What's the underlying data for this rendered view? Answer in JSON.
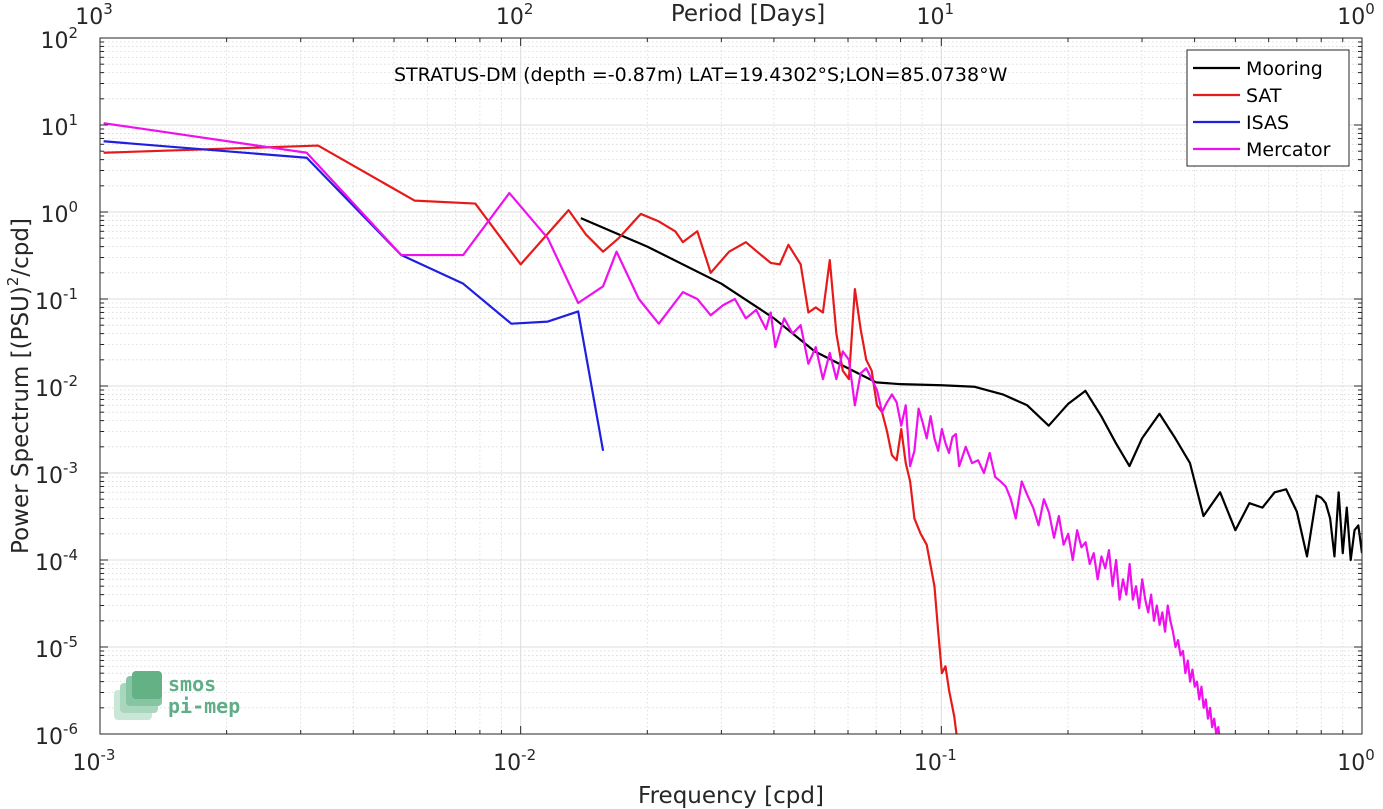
{
  "chart_data": {
    "type": "line",
    "title": "STRATUS-DM (depth =-0.87m) LAT=19.4302°S;LON=85.0738°W",
    "xlabel": "Frequency [cpd]",
    "ylabel_pre": "Power Spectrum [(PSU)",
    "ylabel_exp": "2",
    "ylabel_post": "/cpd]",
    "top_xlabel": "Period [Days]",
    "xscale": "log",
    "yscale": "log",
    "xlim": [
      0.001,
      1
    ],
    "ylim": [
      1e-06,
      100
    ],
    "grid": true,
    "legend_position": "top-right",
    "x_ticks": [
      {
        "base": "10",
        "exp": "-3"
      },
      {
        "base": "10",
        "exp": "-2"
      },
      {
        "base": "10",
        "exp": "-1"
      },
      {
        "base": "10",
        "exp": "0"
      }
    ],
    "y_ticks": [
      {
        "base": "10",
        "exp": "2"
      },
      {
        "base": "10",
        "exp": "1"
      },
      {
        "base": "10",
        "exp": "0"
      },
      {
        "base": "10",
        "exp": "-1"
      },
      {
        "base": "10",
        "exp": "-2"
      },
      {
        "base": "10",
        "exp": "-3"
      },
      {
        "base": "10",
        "exp": "-4"
      },
      {
        "base": "10",
        "exp": "-5"
      },
      {
        "base": "10",
        "exp": "-6"
      }
    ],
    "top_ticks": [
      {
        "base": "10",
        "exp": "3"
      },
      {
        "base": "10",
        "exp": "2"
      },
      {
        "base": "10",
        "exp": "1"
      },
      {
        "base": "10",
        "exp": "0"
      }
    ],
    "series": [
      {
        "name": "Mooring",
        "color": "#000000",
        "points": [
          [
            0.0139,
            0.85
          ],
          [
            0.02,
            0.4
          ],
          [
            0.03,
            0.15
          ],
          [
            0.04,
            0.06
          ],
          [
            0.05,
            0.025
          ],
          [
            0.06,
            0.016
          ],
          [
            0.07,
            0.011
          ],
          [
            0.08,
            0.0105
          ],
          [
            0.1,
            0.0102
          ],
          [
            0.12,
            0.0098
          ],
          [
            0.14,
            0.008
          ],
          [
            0.16,
            0.006
          ],
          [
            0.18,
            0.0035
          ],
          [
            0.2,
            0.0062
          ],
          [
            0.22,
            0.0088
          ],
          [
            0.24,
            0.0045
          ],
          [
            0.26,
            0.0022
          ],
          [
            0.28,
            0.0012
          ],
          [
            0.3,
            0.0025
          ],
          [
            0.33,
            0.0048
          ],
          [
            0.36,
            0.0025
          ],
          [
            0.39,
            0.0013
          ],
          [
            0.42,
            0.00032
          ],
          [
            0.46,
            0.0006
          ],
          [
            0.5,
            0.00022
          ],
          [
            0.54,
            0.00045
          ],
          [
            0.58,
            0.0004
          ],
          [
            0.62,
            0.0006
          ],
          [
            0.66,
            0.00065
          ],
          [
            0.7,
            0.00036
          ],
          [
            0.74,
            0.00011
          ],
          [
            0.78,
            0.00055
          ],
          [
            0.8,
            0.00052
          ],
          [
            0.82,
            0.00045
          ],
          [
            0.84,
            0.0003
          ],
          [
            0.86,
            0.00011
          ],
          [
            0.88,
            0.0006
          ],
          [
            0.9,
            0.00012
          ],
          [
            0.92,
            0.0004
          ],
          [
            0.94,
            0.0001
          ],
          [
            0.96,
            0.00022
          ],
          [
            0.98,
            0.00025
          ],
          [
            1.0,
            0.00012
          ]
        ]
      },
      {
        "name": "SAT",
        "color": "#e61a1a",
        "points": [
          [
            0.00102,
            4.8
          ],
          [
            0.0033,
            5.8
          ],
          [
            0.0056,
            1.35
          ],
          [
            0.0078,
            1.25
          ],
          [
            0.01,
            0.25
          ],
          [
            0.013,
            1.05
          ],
          [
            0.0143,
            0.55
          ],
          [
            0.0157,
            0.35
          ],
          [
            0.0171,
            0.5
          ],
          [
            0.0193,
            0.95
          ],
          [
            0.0213,
            0.78
          ],
          [
            0.0233,
            0.6
          ],
          [
            0.0243,
            0.45
          ],
          [
            0.0263,
            0.6
          ],
          [
            0.0283,
            0.2
          ],
          [
            0.0313,
            0.35
          ],
          [
            0.0343,
            0.45
          ],
          [
            0.0373,
            0.32
          ],
          [
            0.0393,
            0.26
          ],
          [
            0.0413,
            0.25
          ],
          [
            0.0433,
            0.42
          ],
          [
            0.0463,
            0.25
          ],
          [
            0.0483,
            0.07
          ],
          [
            0.0503,
            0.08
          ],
          [
            0.0523,
            0.07
          ],
          [
            0.0543,
            0.28
          ],
          [
            0.0563,
            0.04
          ],
          [
            0.0583,
            0.015
          ],
          [
            0.0603,
            0.012
          ],
          [
            0.0623,
            0.13
          ],
          [
            0.0643,
            0.045
          ],
          [
            0.0663,
            0.02
          ],
          [
            0.0683,
            0.015
          ],
          [
            0.0703,
            0.006
          ],
          [
            0.0723,
            0.005
          ],
          [
            0.0743,
            0.003
          ],
          [
            0.0763,
            0.0016
          ],
          [
            0.0783,
            0.0014
          ],
          [
            0.0803,
            0.0032
          ],
          [
            0.0823,
            0.0013
          ],
          [
            0.0843,
            0.0008
          ],
          [
            0.0863,
            0.0003
          ],
          [
            0.0893,
            0.0002
          ],
          [
            0.0923,
            0.00015
          ],
          [
            0.0963,
            5e-05
          ],
          [
            0.0983,
            1.5e-05
          ],
          [
            0.1003,
            5e-06
          ],
          [
            0.1023,
            6e-06
          ],
          [
            0.1043,
            3.2e-06
          ],
          [
            0.1073,
            1.6e-06
          ],
          [
            0.1093,
            8e-07
          ]
        ]
      },
      {
        "name": "ISAS",
        "color": "#1f1fe0",
        "points": [
          [
            0.00102,
            6.5
          ],
          [
            0.0031,
            4.2
          ],
          [
            0.0052,
            0.32
          ],
          [
            0.0073,
            0.15
          ],
          [
            0.0095,
            0.052
          ],
          [
            0.0116,
            0.055
          ],
          [
            0.0137,
            0.072
          ],
          [
            0.0157,
            0.0018
          ]
        ]
      },
      {
        "name": "Mercator",
        "color": "#ee11ee",
        "points": [
          [
            0.00102,
            10.5
          ],
          [
            0.0031,
            4.8
          ],
          [
            0.0052,
            0.32
          ],
          [
            0.0073,
            0.32
          ],
          [
            0.0094,
            1.65
          ],
          [
            0.0116,
            0.5
          ],
          [
            0.0137,
            0.09
          ],
          [
            0.0157,
            0.14
          ],
          [
            0.0169,
            0.35
          ],
          [
            0.0191,
            0.1
          ],
          [
            0.0213,
            0.052
          ],
          [
            0.0243,
            0.12
          ],
          [
            0.0263,
            0.1
          ],
          [
            0.0283,
            0.065
          ],
          [
            0.0303,
            0.085
          ],
          [
            0.0323,
            0.1
          ],
          [
            0.0343,
            0.06
          ],
          [
            0.0363,
            0.075
          ],
          [
            0.0383,
            0.045
          ],
          [
            0.0393,
            0.07
          ],
          [
            0.0403,
            0.028
          ],
          [
            0.0423,
            0.06
          ],
          [
            0.0443,
            0.04
          ],
          [
            0.0463,
            0.05
          ],
          [
            0.0483,
            0.018
          ],
          [
            0.0503,
            0.028
          ],
          [
            0.0523,
            0.012
          ],
          [
            0.0543,
            0.024
          ],
          [
            0.0563,
            0.012
          ],
          [
            0.0583,
            0.025
          ],
          [
            0.0603,
            0.02
          ],
          [
            0.0623,
            0.006
          ],
          [
            0.0643,
            0.014
          ],
          [
            0.0663,
            0.016
          ],
          [
            0.0683,
            0.012
          ],
          [
            0.0703,
            0.009
          ],
          [
            0.0723,
            0.005
          ],
          [
            0.0743,
            0.0065
          ],
          [
            0.0763,
            0.008
          ],
          [
            0.0783,
            0.0065
          ],
          [
            0.0803,
            0.0035
          ],
          [
            0.0823,
            0.006
          ],
          [
            0.0843,
            0.0012
          ],
          [
            0.0863,
            0.0018
          ],
          [
            0.0883,
            0.0055
          ],
          [
            0.0903,
            0.0038
          ],
          [
            0.0923,
            0.0025
          ],
          [
            0.0943,
            0.0045
          ],
          [
            0.0963,
            0.0025
          ],
          [
            0.0983,
            0.0018
          ],
          [
            0.1003,
            0.0032
          ],
          [
            0.1023,
            0.0022
          ],
          [
            0.1043,
            0.0017
          ],
          [
            0.1063,
            0.0026
          ],
          [
            0.1083,
            0.0028
          ],
          [
            0.1103,
            0.0012
          ],
          [
            0.1143,
            0.002
          ],
          [
            0.1183,
            0.0013
          ],
          [
            0.1223,
            0.0014
          ],
          [
            0.1263,
            0.001
          ],
          [
            0.1303,
            0.0017
          ],
          [
            0.1343,
            0.0009
          ],
          [
            0.1383,
            0.0008
          ],
          [
            0.1423,
            0.0007
          ],
          [
            0.1463,
            0.0005
          ],
          [
            0.1503,
            0.0003
          ],
          [
            0.1553,
            0.0008
          ],
          [
            0.1603,
            0.00055
          ],
          [
            0.1653,
            0.0004
          ],
          [
            0.1703,
            0.00025
          ],
          [
            0.1753,
            0.0005
          ],
          [
            0.1803,
            0.00035
          ],
          [
            0.1853,
            0.00018
          ],
          [
            0.1903,
            0.00032
          ],
          [
            0.1953,
            0.00015
          ],
          [
            0.2003,
            0.0002
          ],
          [
            0.2053,
            0.0001
          ],
          [
            0.2103,
            0.00022
          ],
          [
            0.2153,
            0.00014
          ],
          [
            0.2203,
            0.00016
          ],
          [
            0.2253,
            9e-05
          ],
          [
            0.2303,
            0.00012
          ],
          [
            0.2353,
            6e-05
          ],
          [
            0.2403,
            0.00011
          ],
          [
            0.2453,
            8e-05
          ],
          [
            0.2503,
            0.00013
          ],
          [
            0.2553,
            5e-05
          ],
          [
            0.2603,
            0.0001
          ],
          [
            0.2653,
            3.5e-05
          ],
          [
            0.2703,
            6e-05
          ],
          [
            0.2753,
            4e-05
          ],
          [
            0.2803,
            9e-05
          ],
          [
            0.2853,
            3.5e-05
          ],
          [
            0.2903,
            5e-05
          ],
          [
            0.2953,
            2.8e-05
          ],
          [
            0.3003,
            6e-05
          ],
          [
            0.3053,
            3.5e-05
          ],
          [
            0.3103,
            2.5e-05
          ],
          [
            0.3153,
            4e-05
          ],
          [
            0.3203,
            2e-05
          ],
          [
            0.3253,
            3e-05
          ],
          [
            0.3303,
            1.8e-05
          ],
          [
            0.3353,
            2.5e-05
          ],
          [
            0.3403,
            1.5e-05
          ],
          [
            0.3453,
            3e-05
          ],
          [
            0.3503,
            2e-05
          ],
          [
            0.3553,
            1.5e-05
          ],
          [
            0.3603,
            1e-05
          ],
          [
            0.3653,
            1.2e-05
          ],
          [
            0.3703,
            8e-06
          ],
          [
            0.3753,
            9e-06
          ],
          [
            0.3803,
            5e-06
          ],
          [
            0.3853,
            7e-06
          ],
          [
            0.3903,
            4e-06
          ],
          [
            0.3953,
            5.5e-06
          ],
          [
            0.4003,
            3.5e-06
          ],
          [
            0.4053,
            4e-06
          ],
          [
            0.4103,
            2.5e-06
          ],
          [
            0.4153,
            3.5e-06
          ],
          [
            0.4203,
            2e-06
          ],
          [
            0.4253,
            2.5e-06
          ],
          [
            0.4303,
            1.5e-06
          ],
          [
            0.4353,
            2e-06
          ],
          [
            0.4403,
            1.2e-06
          ],
          [
            0.4453,
            1.5e-06
          ],
          [
            0.4503,
            1e-06
          ],
          [
            0.4553,
            1.2e-06
          ],
          [
            0.4603,
            8e-07
          ]
        ]
      }
    ]
  },
  "watermark": {
    "line1": "smos",
    "line2": "pi-mep"
  }
}
